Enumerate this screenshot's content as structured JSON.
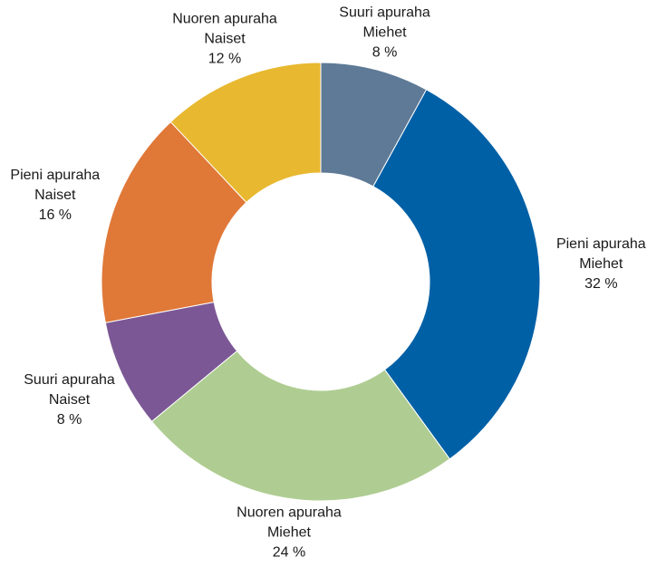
{
  "chart_data": {
    "type": "donut",
    "categories": [
      [
        "Suuri apuraha",
        "Miehet"
      ],
      [
        "Pieni apuraha",
        "Miehet"
      ],
      [
        "Nuoren apuraha",
        "Miehet"
      ],
      [
        "Suuri apuraha",
        "Naiset"
      ],
      [
        "Pieni apuraha",
        "Naiset"
      ],
      [
        "Nuoren apuraha",
        "Naiset"
      ]
    ],
    "values": [
      8,
      32,
      24,
      8,
      16,
      12
    ],
    "value_labels": [
      "8 %",
      "32 %",
      "24 %",
      "8 %",
      "16 %",
      "12 %"
    ],
    "colors": [
      "#5f7a96",
      "#0060a6",
      "#afcd92",
      "#7b5895",
      "#e07838",
      "#e8b830"
    ]
  }
}
